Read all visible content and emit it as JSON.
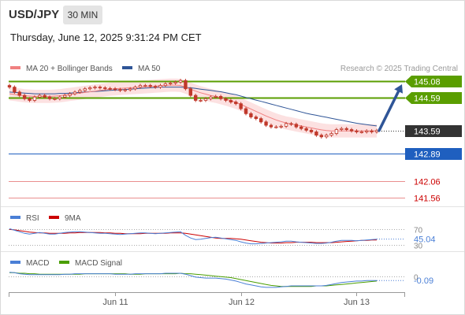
{
  "header": {
    "symbol": "USD/JPY",
    "timeframe": "30 MIN",
    "datetime": "Thursday, June 12, 2025 9:31:24 PM CET"
  },
  "legend": {
    "ma20_bb": "MA 20 + Bollinger Bands",
    "ma50": "MA 50",
    "credit": "Research © 2025 Trading Central",
    "rsi": "RSI",
    "rsi_ma": "9MA",
    "macd": "MACD",
    "macd_signal": "MACD Signal"
  },
  "colors": {
    "ma20": "#f08080",
    "bollinger_fill": "#fbdada",
    "ma50": "#2f5597",
    "resistance": "#5a9e00",
    "support": "#1f5fbf",
    "target": "#e06060",
    "candle": "#c0392b",
    "rsi": "#4a7fd6",
    "rsi_ma": "#cc0000",
    "macd": "#4a7fd6",
    "macd_signal": "#4a9e00",
    "current": "#333333",
    "arrow": "#2f5597"
  },
  "chart_data": {
    "type": "candlestick",
    "price_levels": [
      {
        "name": "resistance-2",
        "label": "145.08",
        "value": 145.08,
        "kind": "resistance"
      },
      {
        "name": "resistance-1",
        "label": "144.59",
        "value": 144.59,
        "kind": "resistance"
      },
      {
        "name": "current",
        "label": "143.59",
        "value": 143.59,
        "kind": "current"
      },
      {
        "name": "support-1",
        "label": "142.89",
        "value": 142.89,
        "kind": "support"
      },
      {
        "name": "target-1",
        "label": "142.06",
        "value": 142.06,
        "kind": "target"
      },
      {
        "name": "target-2",
        "label": "141.56",
        "value": 141.56,
        "kind": "target"
      }
    ],
    "price_ylim": [
      141.4,
      145.2
    ],
    "x_ticks": [
      "Jun 11",
      "Jun 12",
      "Jun 13"
    ],
    "x_tick_index": [
      21,
      46,
      69
    ],
    "n_bars": 74,
    "close": [
      144.9,
      144.75,
      144.65,
      144.55,
      144.5,
      144.6,
      144.65,
      144.6,
      144.55,
      144.55,
      144.6,
      144.65,
      144.7,
      144.75,
      144.8,
      144.85,
      144.88,
      144.9,
      144.88,
      144.86,
      144.85,
      144.83,
      144.8,
      144.82,
      144.85,
      144.9,
      144.95,
      144.95,
      144.92,
      144.9,
      144.95,
      145.0,
      145.02,
      145.05,
      145.1,
      144.85,
      144.65,
      144.5,
      144.5,
      144.55,
      144.6,
      144.62,
      144.55,
      144.5,
      144.45,
      144.4,
      144.25,
      144.1,
      144.0,
      143.95,
      143.85,
      143.75,
      143.7,
      143.7,
      143.72,
      143.8,
      143.78,
      143.7,
      143.65,
      143.6,
      143.55,
      143.45,
      143.4,
      143.45,
      143.5,
      143.62,
      143.65,
      143.62,
      143.58,
      143.55,
      143.55,
      143.58,
      143.55,
      143.59
    ],
    "ma20": [
      144.7,
      144.68,
      144.66,
      144.64,
      144.63,
      144.62,
      144.62,
      144.62,
      144.62,
      144.63,
      144.64,
      144.66,
      144.68,
      144.7,
      144.72,
      144.74,
      144.76,
      144.78,
      144.8,
      144.82,
      144.84,
      144.85,
      144.86,
      144.87,
      144.88,
      144.89,
      144.9,
      144.91,
      144.92,
      144.93,
      144.94,
      144.95,
      144.96,
      144.96,
      144.95,
      144.9,
      144.84,
      144.78,
      144.73,
      144.69,
      144.65,
      144.62,
      144.58,
      144.54,
      144.49,
      144.44,
      144.38,
      144.31,
      144.24,
      144.17,
      144.1,
      144.03,
      143.97,
      143.91,
      143.86,
      143.82,
      143.79,
      143.76,
      143.73,
      143.7,
      143.67,
      143.64,
      143.61,
      143.59,
      143.58,
      143.58,
      143.58,
      143.58,
      143.58,
      143.58,
      143.58,
      143.58,
      143.58,
      143.58
    ],
    "ma50": [
      144.75,
      144.74,
      144.73,
      144.72,
      144.71,
      144.7,
      144.7,
      144.7,
      144.7,
      144.7,
      144.71,
      144.71,
      144.72,
      144.73,
      144.74,
      144.75,
      144.76,
      144.77,
      144.78,
      144.79,
      144.8,
      144.81,
      144.82,
      144.83,
      144.84,
      144.85,
      144.86,
      144.87,
      144.88,
      144.89,
      144.9,
      144.9,
      144.9,
      144.9,
      144.9,
      144.89,
      144.88,
      144.86,
      144.84,
      144.82,
      144.8,
      144.78,
      144.76,
      144.73,
      144.7,
      144.67,
      144.63,
      144.59,
      144.55,
      144.51,
      144.47,
      144.43,
      144.39,
      144.35,
      144.31,
      144.27,
      144.23,
      144.19,
      144.15,
      144.11,
      144.08,
      144.05,
      144.02,
      143.99,
      143.96,
      143.93,
      143.9,
      143.87,
      143.84,
      143.81,
      143.79,
      143.77,
      143.75,
      143.73
    ],
    "bb_width": 0.2,
    "forecast_arrow": {
      "from_value": 143.59,
      "to_value": 145.08
    },
    "rsi": {
      "name": "RSI",
      "value_label": "45.04",
      "ticks": [
        {
          "label": "70",
          "value": 70
        },
        {
          "label": "30",
          "value": 30
        }
      ],
      "ylim": [
        20,
        85
      ],
      "values": [
        72,
        68,
        64,
        60,
        58,
        60,
        62,
        60,
        58,
        58,
        60,
        62,
        63,
        64,
        64,
        63,
        62,
        61,
        60,
        60,
        59,
        58,
        57,
        58,
        59,
        60,
        61,
        61,
        60,
        59,
        60,
        61,
        62,
        63,
        64,
        55,
        48,
        44,
        45,
        47,
        49,
        50,
        48,
        46,
        44,
        42,
        38,
        35,
        33,
        33,
        34,
        35,
        36,
        37,
        38,
        40,
        40,
        38,
        37,
        36,
        35,
        34,
        34,
        35,
        37,
        40,
        42,
        42,
        42,
        41,
        42,
        43,
        44,
        45.04
      ],
      "ma_values": [
        70,
        69,
        67,
        65,
        63,
        62,
        61,
        61,
        60,
        60,
        60,
        60,
        61,
        61,
        62,
        62,
        62,
        62,
        62,
        61,
        61,
        60,
        60,
        59,
        59,
        59,
        59,
        60,
        60,
        60,
        60,
        60,
        61,
        61,
        61,
        60,
        58,
        56,
        54,
        52,
        50,
        48,
        47,
        47,
        47,
        46,
        45,
        43,
        41,
        39,
        37,
        36,
        35,
        35,
        35,
        36,
        36,
        37,
        37,
        37,
        37,
        36,
        36,
        36,
        36,
        37,
        38,
        39,
        40,
        41,
        42,
        42,
        43,
        43
      ]
    },
    "macd": {
      "name": "MACD",
      "value_label": "-0.09",
      "ticks": [
        {
          "label": "0",
          "value": 0
        }
      ],
      "ylim": [
        -0.28,
        0.14
      ],
      "values": [
        0.08,
        0.07,
        0.05,
        0.04,
        0.03,
        0.03,
        0.03,
        0.03,
        0.03,
        0.03,
        0.03,
        0.04,
        0.04,
        0.05,
        0.05,
        0.05,
        0.05,
        0.05,
        0.05,
        0.05,
        0.05,
        0.04,
        0.04,
        0.04,
        0.04,
        0.05,
        0.05,
        0.05,
        0.05,
        0.05,
        0.05,
        0.06,
        0.06,
        0.06,
        0.06,
        0.04,
        0.01,
        -0.02,
        -0.03,
        -0.04,
        -0.04,
        -0.04,
        -0.05,
        -0.06,
        -0.08,
        -0.1,
        -0.13,
        -0.16,
        -0.18,
        -0.2,
        -0.22,
        -0.23,
        -0.23,
        -0.23,
        -0.22,
        -0.21,
        -0.2,
        -0.2,
        -0.2,
        -0.2,
        -0.2,
        -0.2,
        -0.2,
        -0.19,
        -0.17,
        -0.15,
        -0.13,
        -0.12,
        -0.11,
        -0.1,
        -0.1,
        -0.09,
        -0.09,
        -0.09
      ],
      "signal_values": [
        0.07,
        0.07,
        0.06,
        0.06,
        0.05,
        0.05,
        0.04,
        0.04,
        0.04,
        0.04,
        0.04,
        0.04,
        0.04,
        0.04,
        0.04,
        0.05,
        0.05,
        0.05,
        0.05,
        0.05,
        0.05,
        0.05,
        0.05,
        0.05,
        0.04,
        0.04,
        0.04,
        0.05,
        0.05,
        0.05,
        0.05,
        0.05,
        0.05,
        0.05,
        0.06,
        0.05,
        0.05,
        0.04,
        0.03,
        0.02,
        0.01,
        0.0,
        -0.01,
        -0.02,
        -0.03,
        -0.05,
        -0.07,
        -0.09,
        -0.11,
        -0.13,
        -0.15,
        -0.17,
        -0.19,
        -0.2,
        -0.21,
        -0.21,
        -0.21,
        -0.21,
        -0.21,
        -0.21,
        -0.21,
        -0.2,
        -0.2,
        -0.2,
        -0.19,
        -0.18,
        -0.17,
        -0.16,
        -0.15,
        -0.14,
        -0.13,
        -0.12,
        -0.11,
        -0.1
      ]
    }
  }
}
